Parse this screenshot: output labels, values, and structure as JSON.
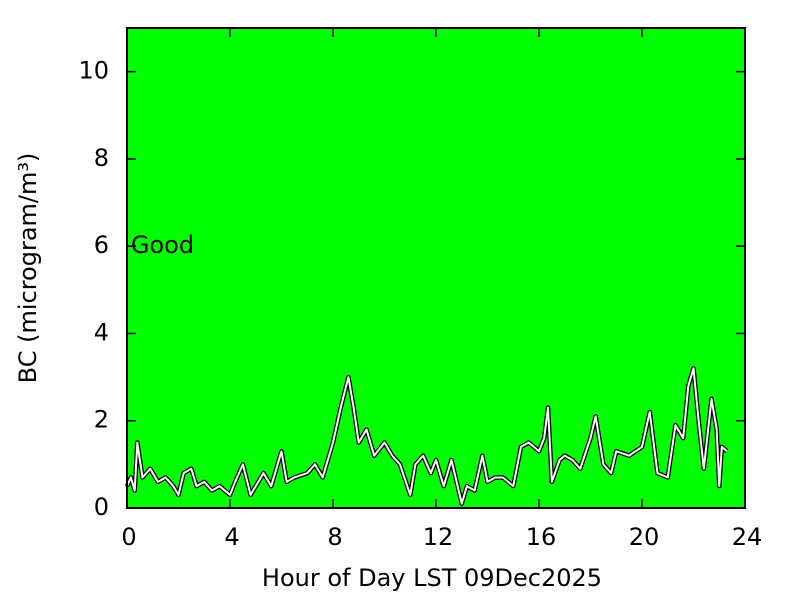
{
  "chart_data": {
    "type": "line",
    "x_label": "Hour of Day LST 09Dec2025",
    "y_label": "BC (microgram/m³)",
    "annotation": {
      "text": "Good",
      "x": 0.15,
      "y": 6
    },
    "background": "#00ff00",
    "xlim": [
      0,
      24
    ],
    "xticks": [
      0,
      4,
      8,
      12,
      16,
      20,
      24
    ],
    "ylim": [
      0,
      11
    ],
    "yticks": [
      0,
      2,
      4,
      6,
      8,
      10
    ],
    "series": [
      {
        "color": "#ffffff",
        "x": [
          0,
          0.15,
          0.3,
          0.4,
          0.6,
          0.9,
          1.2,
          1.5,
          1.8,
          2.0,
          2.2,
          2.5,
          2.7,
          3.0,
          3.3,
          3.6,
          4.0,
          4.2,
          4.5,
          4.8,
          5.0,
          5.3,
          5.6,
          6.0,
          6.2,
          6.5,
          7.0,
          7.3,
          7.6,
          8.0,
          8.3,
          8.6,
          8.8,
          9.0,
          9.3,
          9.6,
          10.0,
          10.3,
          10.6,
          11.0,
          11.2,
          11.5,
          11.8,
          12.0,
          12.3,
          12.6,
          13.0,
          13.2,
          13.5,
          13.8,
          14.0,
          14.3,
          14.6,
          15.0,
          15.3,
          15.6,
          16.0,
          16.2,
          16.35,
          16.5,
          16.8,
          17.0,
          17.3,
          17.6,
          18.0,
          18.2,
          18.5,
          18.8,
          19.0,
          19.5,
          20.0,
          20.3,
          20.6,
          21.0,
          21.3,
          21.6,
          21.8,
          22.0,
          22.2,
          22.4,
          22.7,
          22.9,
          23.0,
          23.1,
          23.3
        ],
        "values": [
          0.5,
          0.7,
          0.4,
          1.5,
          0.7,
          0.9,
          0.6,
          0.7,
          0.5,
          0.3,
          0.8,
          0.9,
          0.5,
          0.6,
          0.4,
          0.5,
          0.3,
          0.6,
          1.0,
          0.3,
          0.5,
          0.8,
          0.5,
          1.3,
          0.6,
          0.7,
          0.8,
          1.0,
          0.7,
          1.5,
          2.3,
          3.0,
          2.3,
          1.5,
          1.8,
          1.2,
          1.5,
          1.2,
          1.0,
          0.3,
          1.0,
          1.2,
          0.8,
          1.1,
          0.5,
          1.1,
          0.1,
          0.5,
          0.4,
          1.2,
          0.6,
          0.7,
          0.7,
          0.5,
          1.4,
          1.5,
          1.3,
          1.6,
          2.3,
          0.6,
          1.1,
          1.2,
          1.1,
          0.9,
          1.6,
          2.1,
          1.0,
          0.8,
          1.3,
          1.2,
          1.4,
          2.2,
          0.8,
          0.7,
          1.9,
          1.6,
          2.8,
          3.2,
          2.0,
          0.9,
          2.5,
          1.8,
          0.5,
          1.4,
          1.3
        ]
      }
    ]
  }
}
